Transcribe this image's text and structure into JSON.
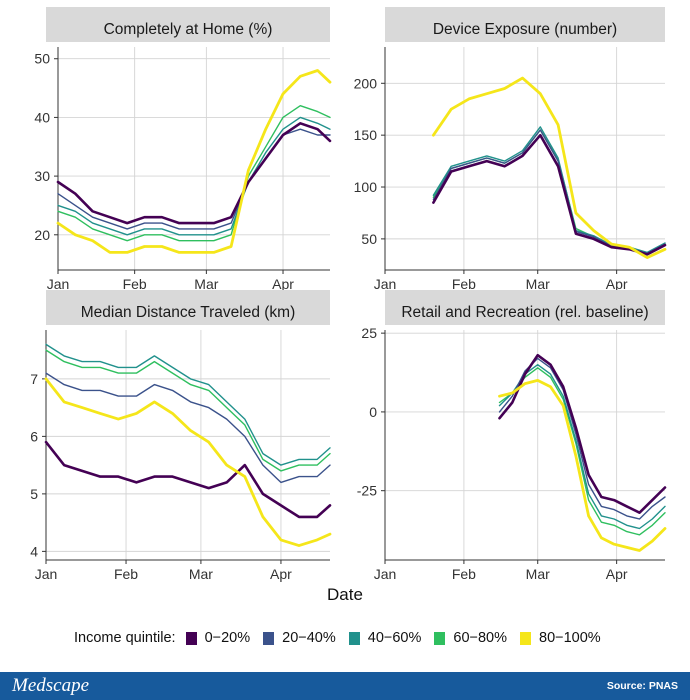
{
  "x_label": "Date",
  "legend": {
    "title": "Income quintile:",
    "items": [
      {
        "label": "0−20%",
        "color": "#440154"
      },
      {
        "label": "20−40%",
        "color": "#3b528b"
      },
      {
        "label": "40−60%",
        "color": "#21918c"
      },
      {
        "label": "60−80%",
        "color": "#2fbf5f"
      },
      {
        "label": "80−100%",
        "color": "#f5e61a"
      }
    ]
  },
  "footer": {
    "brand": "Medscape",
    "source": "Source: PNAS"
  },
  "chart_data": [
    {
      "type": "line",
      "title": "Completely at Home (%)",
      "x_range": [
        "2020-01-01",
        "2020-04-20"
      ],
      "x_ticks": [
        "Jan",
        "Feb",
        "Mar",
        "Apr"
      ],
      "y_range": [
        14,
        52
      ],
      "y_ticks": [
        20,
        30,
        40,
        50
      ],
      "grid": true,
      "x": [
        "2020-01-01",
        "2020-01-08",
        "2020-01-15",
        "2020-01-22",
        "2020-01-29",
        "2020-02-05",
        "2020-02-12",
        "2020-02-19",
        "2020-02-26",
        "2020-03-04",
        "2020-03-11",
        "2020-03-18",
        "2020-03-25",
        "2020-04-01",
        "2020-04-08",
        "2020-04-15",
        "2020-04-20"
      ],
      "series": [
        {
          "name": "0−20%",
          "values": [
            29,
            27,
            24,
            23,
            22,
            23,
            23,
            22,
            22,
            22,
            23,
            29,
            33,
            37,
            39,
            38,
            36
          ]
        },
        {
          "name": "20−40%",
          "values": [
            27,
            25,
            23,
            22,
            21,
            22,
            22,
            21,
            21,
            21,
            22,
            29,
            33,
            37,
            38,
            37,
            37
          ]
        },
        {
          "name": "40−60%",
          "values": [
            25,
            24,
            22,
            21,
            20,
            21,
            21,
            20,
            20,
            20,
            21,
            29,
            34,
            38,
            40,
            39,
            38
          ]
        },
        {
          "name": "60−80%",
          "values": [
            24,
            23,
            21,
            20,
            19,
            20,
            20,
            19,
            19,
            19,
            20,
            30,
            35,
            40,
            42,
            41,
            40
          ]
        },
        {
          "name": "80−100%",
          "values": [
            22,
            20,
            19,
            17,
            17,
            18,
            18,
            17,
            17,
            17,
            18,
            31,
            38,
            44,
            47,
            48,
            46
          ]
        }
      ]
    },
    {
      "type": "line",
      "title": "Device Exposure (number)",
      "x_range": [
        "2020-01-01",
        "2020-04-20"
      ],
      "x_ticks": [
        "Jan",
        "Feb",
        "Mar",
        "Apr"
      ],
      "y_range": [
        20,
        235
      ],
      "y_ticks": [
        50,
        100,
        150,
        200
      ],
      "grid": true,
      "x": [
        "2020-01-20",
        "2020-01-27",
        "2020-02-03",
        "2020-02-10",
        "2020-02-17",
        "2020-02-24",
        "2020-03-02",
        "2020-03-09",
        "2020-03-16",
        "2020-03-23",
        "2020-03-30",
        "2020-04-06",
        "2020-04-13",
        "2020-04-20"
      ],
      "series": [
        {
          "name": "0−20%",
          "values": [
            85,
            115,
            120,
            125,
            120,
            130,
            150,
            120,
            55,
            50,
            42,
            40,
            35,
            44
          ]
        },
        {
          "name": "20−40%",
          "values": [
            88,
            118,
            123,
            128,
            123,
            133,
            155,
            125,
            57,
            52,
            43,
            41,
            36,
            45
          ]
        },
        {
          "name": "40−60%",
          "values": [
            92,
            120,
            125,
            130,
            125,
            135,
            158,
            128,
            58,
            53,
            44,
            42,
            37,
            46
          ]
        },
        {
          "name": "60−80%",
          "values": [
            90,
            118,
            123,
            128,
            123,
            133,
            155,
            126,
            60,
            52,
            43,
            41,
            36,
            45
          ]
        },
        {
          "name": "80−100%",
          "values": [
            150,
            175,
            185,
            190,
            195,
            205,
            190,
            160,
            75,
            58,
            45,
            42,
            32,
            40
          ]
        }
      ]
    },
    {
      "type": "line",
      "title": "Median Distance Traveled (km)",
      "x_range": [
        "2020-01-01",
        "2020-04-20"
      ],
      "x_ticks": [
        "Jan",
        "Feb",
        "Mar",
        "Apr"
      ],
      "y_range": [
        3.85,
        7.85
      ],
      "y_ticks": [
        4,
        5,
        6,
        7
      ],
      "grid": true,
      "x": [
        "2020-01-01",
        "2020-01-08",
        "2020-01-15",
        "2020-01-22",
        "2020-01-29",
        "2020-02-05",
        "2020-02-12",
        "2020-02-19",
        "2020-02-26",
        "2020-03-04",
        "2020-03-11",
        "2020-03-18",
        "2020-03-25",
        "2020-04-01",
        "2020-04-08",
        "2020-04-15",
        "2020-04-20"
      ],
      "series": [
        {
          "name": "0−20%",
          "values": [
            5.9,
            5.5,
            5.4,
            5.3,
            5.3,
            5.2,
            5.3,
            5.3,
            5.2,
            5.1,
            5.2,
            5.5,
            5.0,
            4.8,
            4.6,
            4.6,
            4.8
          ]
        },
        {
          "name": "20−40%",
          "values": [
            7.1,
            6.9,
            6.8,
            6.8,
            6.7,
            6.7,
            6.9,
            6.8,
            6.6,
            6.5,
            6.3,
            6.0,
            5.5,
            5.2,
            5.3,
            5.3,
            5.5
          ]
        },
        {
          "name": "40−60%",
          "values": [
            7.6,
            7.4,
            7.3,
            7.3,
            7.2,
            7.2,
            7.4,
            7.2,
            7.0,
            6.9,
            6.6,
            6.3,
            5.7,
            5.5,
            5.6,
            5.6,
            5.8
          ]
        },
        {
          "name": "60−80%",
          "values": [
            7.5,
            7.3,
            7.2,
            7.2,
            7.1,
            7.1,
            7.3,
            7.1,
            6.9,
            6.8,
            6.5,
            6.2,
            5.6,
            5.4,
            5.5,
            5.5,
            5.7
          ]
        },
        {
          "name": "80−100%",
          "values": [
            7.0,
            6.6,
            6.5,
            6.4,
            6.3,
            6.4,
            6.6,
            6.4,
            6.1,
            5.9,
            5.5,
            5.3,
            4.6,
            4.2,
            4.1,
            4.2,
            4.3
          ]
        }
      ]
    },
    {
      "type": "line",
      "title": "Retail and Recreation (rel. baseline)",
      "x_range": [
        "2020-01-01",
        "2020-04-20"
      ],
      "x_ticks": [
        "Jan",
        "Feb",
        "Mar",
        "Apr"
      ],
      "y_range": [
        -47,
        26
      ],
      "y_ticks": [
        25,
        0,
        -25
      ],
      "grid": true,
      "x": [
        "2020-02-15",
        "2020-02-20",
        "2020-02-25",
        "2020-03-01",
        "2020-03-06",
        "2020-03-11",
        "2020-03-16",
        "2020-03-21",
        "2020-03-26",
        "2020-03-31",
        "2020-04-05",
        "2020-04-10",
        "2020-04-15",
        "2020-04-20"
      ],
      "series": [
        {
          "name": "0−20%",
          "values": [
            -2,
            3,
            12,
            18,
            15,
            8,
            -5,
            -20,
            -27,
            -28,
            -30,
            -32,
            -28,
            -24
          ]
        },
        {
          "name": "20−40%",
          "values": [
            0,
            5,
            13,
            17,
            14,
            7,
            -7,
            -23,
            -30,
            -31,
            -33,
            -34,
            -30,
            -27
          ]
        },
        {
          "name": "40−60%",
          "values": [
            2,
            6,
            12,
            15,
            12,
            5,
            -9,
            -26,
            -33,
            -34,
            -36,
            -37,
            -34,
            -30
          ]
        },
        {
          "name": "60−80%",
          "values": [
            3,
            6,
            11,
            14,
            11,
            4,
            -10,
            -28,
            -35,
            -36,
            -38,
            -39,
            -36,
            -32
          ]
        },
        {
          "name": "80−100%",
          "values": [
            5,
            6,
            9,
            10,
            8,
            2,
            -14,
            -33,
            -40,
            -42,
            -43,
            -44,
            -41,
            -37
          ]
        }
      ]
    }
  ]
}
